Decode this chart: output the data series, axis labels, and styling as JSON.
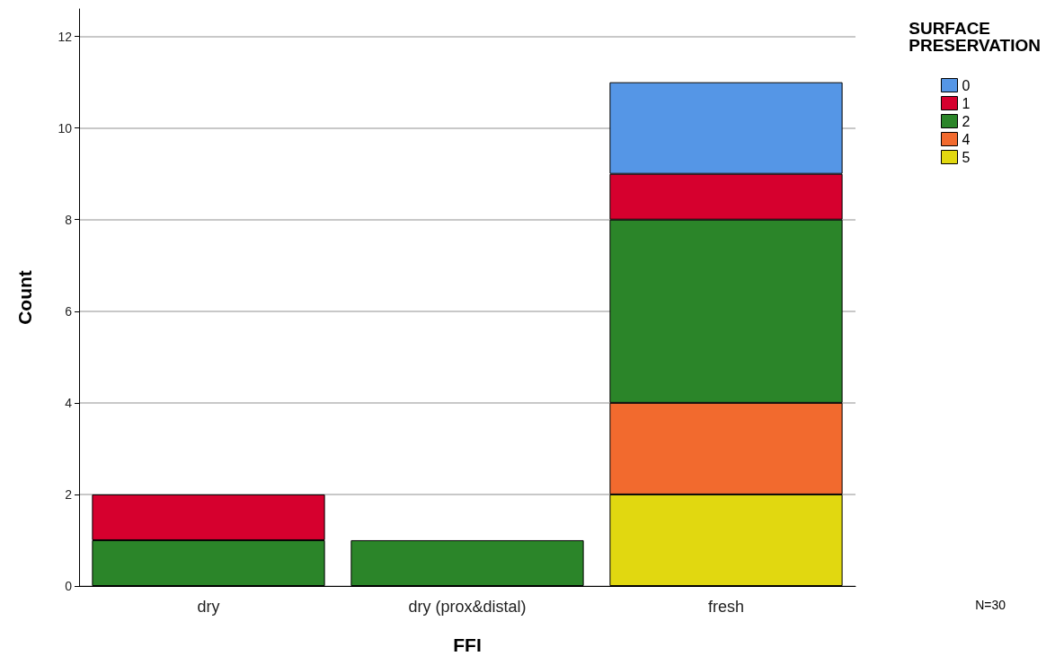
{
  "chart_data": {
    "type": "bar",
    "xlabel": "FFI",
    "ylabel": "Count",
    "legend_title": "SURFACE PRESERVATION",
    "categories": [
      "dry",
      "dry (prox&distal)",
      "fresh"
    ],
    "series": [
      {
        "name": "5",
        "color": "#e1d810",
        "values": [
          0,
          0,
          2
        ]
      },
      {
        "name": "4",
        "color": "#f26a2e",
        "values": [
          0,
          0,
          2
        ]
      },
      {
        "name": "2",
        "color": "#2b8529",
        "values": [
          1,
          1,
          4
        ]
      },
      {
        "name": "1",
        "color": "#d6002e",
        "values": [
          1,
          0,
          1
        ]
      },
      {
        "name": "0",
        "color": "#5596e6",
        "values": [
          0,
          0,
          2
        ]
      }
    ],
    "stacked": true,
    "ylim": [
      0,
      12.6
    ],
    "yticks": [
      0,
      2,
      4,
      6,
      8,
      10,
      12
    ],
    "grid": "y",
    "legend": "top right",
    "annotations": [
      "N=30"
    ]
  }
}
